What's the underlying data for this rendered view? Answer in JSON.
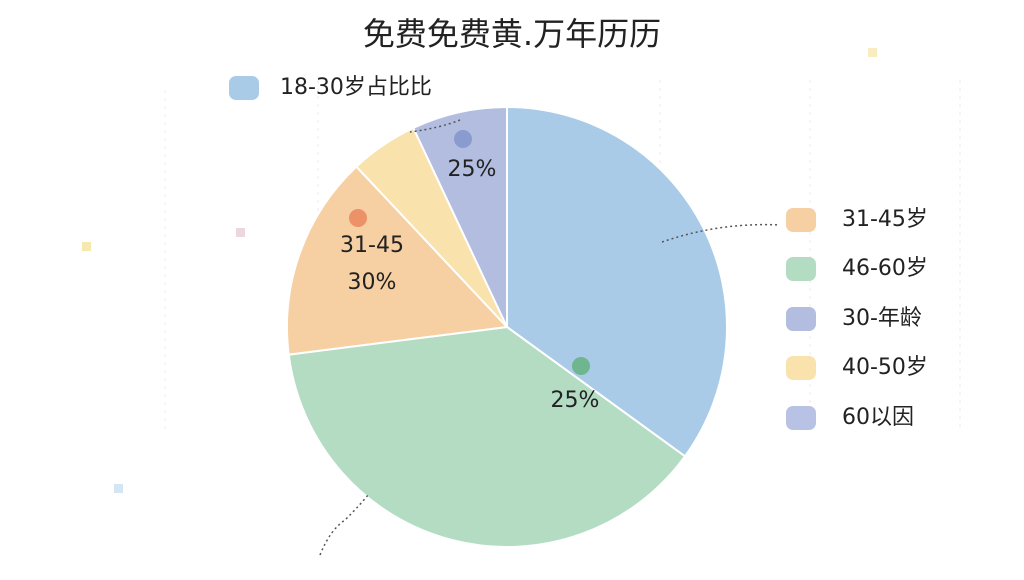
{
  "chart_data": {
    "type": "pie",
    "title": "免费免费黄.万年历历",
    "categories": [
      "18-30岁占比比",
      "46-60岁",
      "31-45岁",
      "40-50岁",
      "30-年龄",
      "60以因"
    ],
    "values": [
      35,
      38,
      15,
      5,
      7,
      null
    ],
    "colors": [
      "#a9cbe8",
      "#b3dcc3",
      "#f6cfa3",
      "#f9e2ac",
      "#b3bde0",
      "#b8c2e4"
    ],
    "annotations": [
      "25%",
      "31-45",
      "30%",
      "25%"
    ]
  }
}
